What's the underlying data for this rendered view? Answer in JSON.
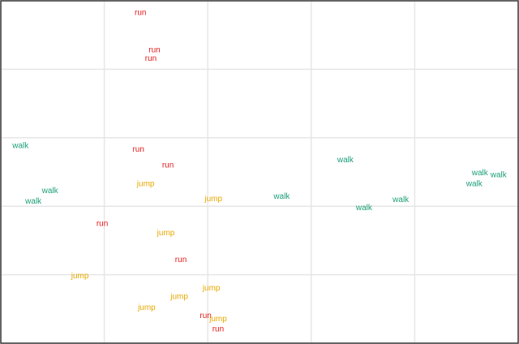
{
  "chart_data": {
    "type": "scatter",
    "title": "",
    "xlabel": "",
    "ylabel": "",
    "xlim": [
      0,
      100
    ],
    "ylim": [
      0,
      100
    ],
    "grid": true,
    "x_gridlines": [
      20,
      40,
      60,
      80
    ],
    "y_gridlines": [
      20,
      40,
      60,
      80
    ],
    "axis_ticks_shown": false,
    "legend": "none",
    "point_marker": "text label",
    "colors": {
      "run": "#e41a1c",
      "jump": "#e6a800",
      "walk": "#1b9e77",
      "grid": "#e6e6e6",
      "frame": "#333333"
    },
    "series": [
      {
        "label": "run",
        "points": [
          {
            "x": 27.0,
            "y": 96.5
          },
          {
            "x": 29.7,
            "y": 85.5
          },
          {
            "x": 29.0,
            "y": 83.0
          },
          {
            "x": 26.6,
            "y": 56.5
          },
          {
            "x": 32.3,
            "y": 51.9
          },
          {
            "x": 19.6,
            "y": 34.8
          },
          {
            "x": 34.8,
            "y": 24.3
          },
          {
            "x": 39.6,
            "y": 7.9
          },
          {
            "x": 42.0,
            "y": 4.0
          }
        ]
      },
      {
        "label": "jump",
        "points": [
          {
            "x": 28.0,
            "y": 46.5
          },
          {
            "x": 41.1,
            "y": 42.1
          },
          {
            "x": 31.9,
            "y": 32.1
          },
          {
            "x": 15.3,
            "y": 19.5
          },
          {
            "x": 40.7,
            "y": 16.0
          },
          {
            "x": 34.5,
            "y": 13.5
          },
          {
            "x": 28.2,
            "y": 10.3
          },
          {
            "x": 42.0,
            "y": 7.0
          }
        ]
      },
      {
        "label": "walk",
        "points": [
          {
            "x": 3.8,
            "y": 57.6
          },
          {
            "x": 9.5,
            "y": 44.4
          },
          {
            "x": 6.3,
            "y": 41.3
          },
          {
            "x": 54.3,
            "y": 42.8
          },
          {
            "x": 66.6,
            "y": 53.4
          },
          {
            "x": 70.2,
            "y": 39.4
          },
          {
            "x": 77.3,
            "y": 41.8
          },
          {
            "x": 92.6,
            "y": 49.6
          },
          {
            "x": 96.2,
            "y": 49.1
          },
          {
            "x": 91.5,
            "y": 46.5
          }
        ]
      }
    ]
  }
}
